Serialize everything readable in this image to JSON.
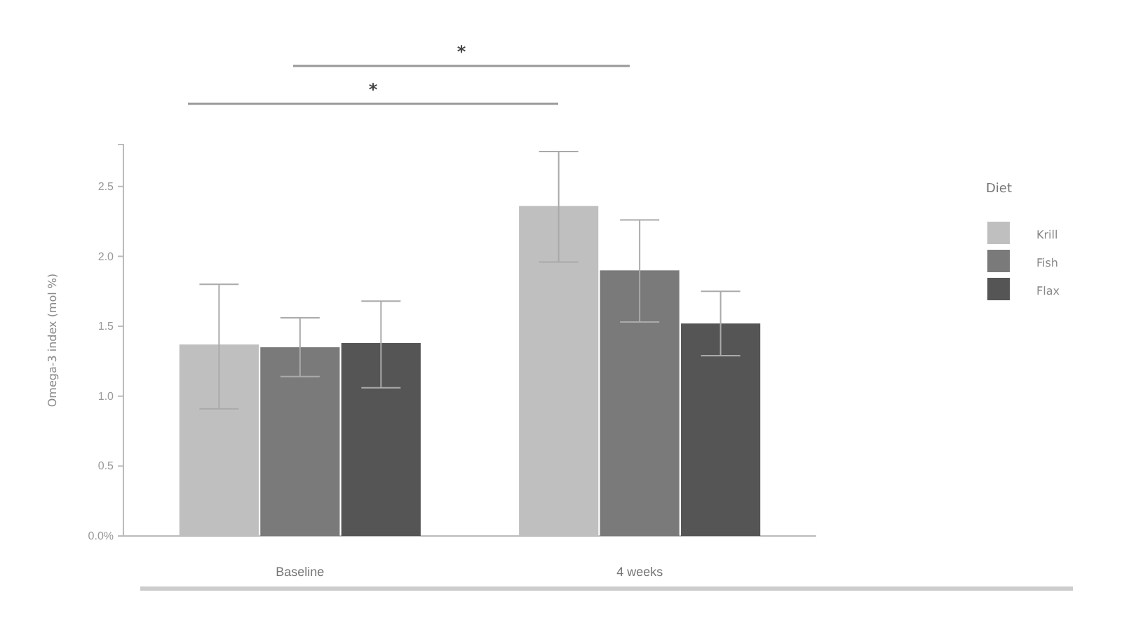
{
  "chart_data": {
    "type": "bar",
    "ylabel": "Omega-3 index (mol %)",
    "legend_title": "Diet",
    "categories": [
      "Baseline",
      "4 weeks"
    ],
    "series": [
      {
        "name": "Krill",
        "color": "#bfbfbf",
        "values": [
          1.37,
          2.36
        ],
        "errors": [
          [
            0.91,
            1.8
          ],
          [
            1.96,
            2.75
          ]
        ]
      },
      {
        "name": "Fish",
        "color": "#7a7a7a",
        "values": [
          1.35,
          1.9
        ],
        "errors": [
          [
            1.14,
            1.56
          ],
          [
            1.53,
            2.26
          ]
        ]
      },
      {
        "name": "Flax",
        "color": "#555555",
        "values": [
          1.38,
          1.52
        ],
        "errors": [
          [
            1.06,
            1.68
          ],
          [
            1.29,
            1.75
          ]
        ]
      }
    ],
    "ylim": [
      0,
      2.8
    ],
    "yticks": [
      {
        "value": 0,
        "label": "0.0%"
      },
      {
        "value": 0.5,
        "label": "0.5"
      },
      {
        "value": 1,
        "label": "1.0"
      },
      {
        "value": 1.5,
        "label": "1.5"
      },
      {
        "value": 2,
        "label": "2.0"
      },
      {
        "value": 2.5,
        "label": "2.5"
      }
    ],
    "annotations": [
      "*",
      "*"
    ],
    "legend": "right",
    "grid": false
  }
}
